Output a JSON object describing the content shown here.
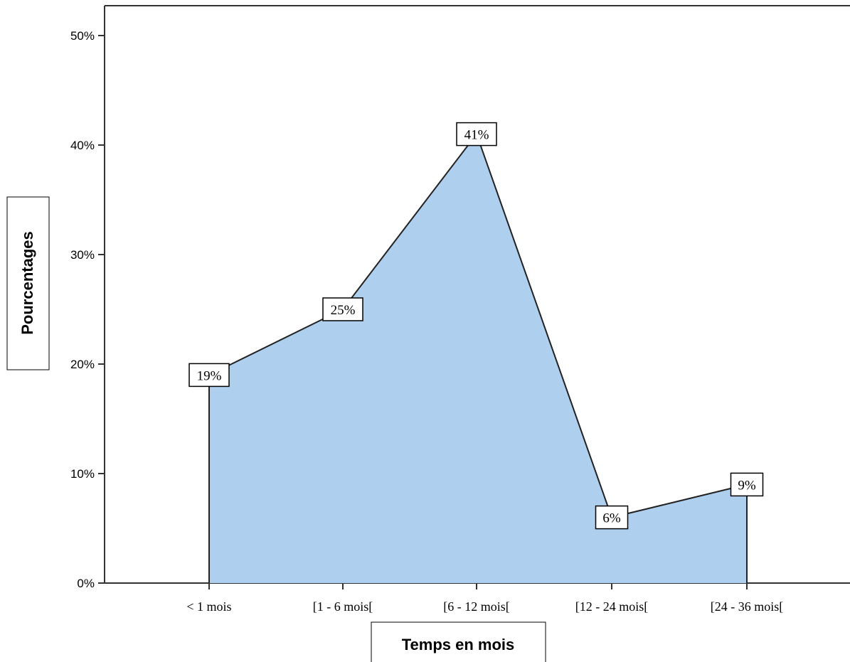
{
  "chart_data": {
    "type": "area",
    "categories": [
      "< 1 mois",
      "[1 - 6 mois[",
      "[6 - 12 mois[",
      "[12 - 24 mois[",
      "[24 - 36 mois["
    ],
    "values": [
      19,
      25,
      41,
      6,
      9
    ],
    "data_labels": [
      "19%",
      "25%",
      "41%",
      "6%",
      "9%"
    ],
    "xlabel": "Temps en mois",
    "ylabel": "Pourcentages",
    "ylim": [
      0,
      50
    ],
    "yticks": [
      0,
      10,
      20,
      30,
      40,
      50
    ],
    "ytick_labels": [
      "0%",
      "10%",
      "20%",
      "30%",
      "40%",
      "50%"
    ],
    "grid": false,
    "fill_color": "#aecfed",
    "line_color": "#222222"
  }
}
